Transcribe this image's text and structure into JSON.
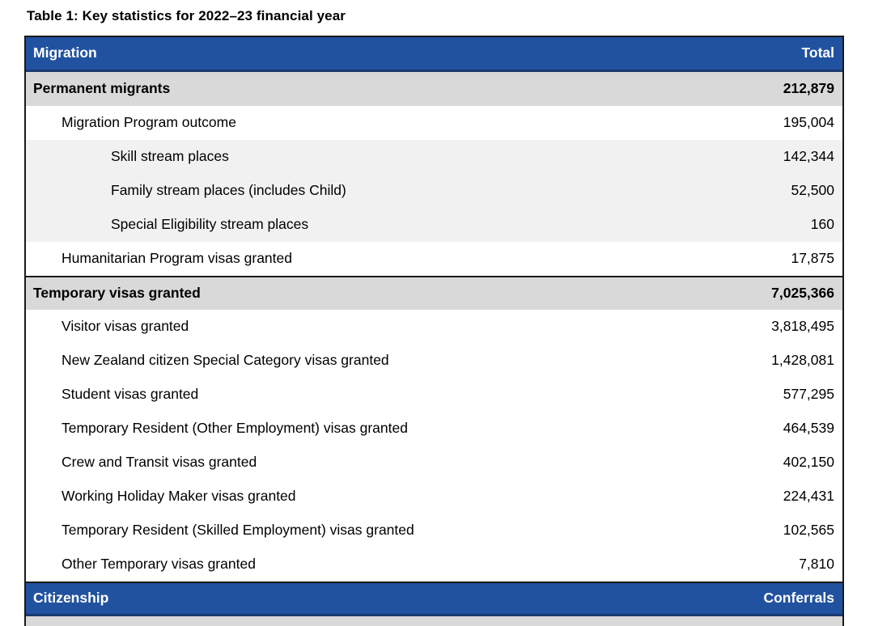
{
  "page": {
    "title": "Table 1: Key statistics for 2022–23 financial year"
  },
  "colors": {
    "header-blue": "#2152A0",
    "header-navy": "#1B3A6F",
    "section-gray": "#D9D9D9",
    "subrow-gray": "#F1F1F1",
    "border-black": "#1a1a1a"
  },
  "table": {
    "rows": [
      {
        "type": "header",
        "divider": false,
        "indent": 0,
        "label": "Migration",
        "value": "Total"
      },
      {
        "type": "section",
        "divider": false,
        "indent": 0,
        "label": "Permanent migrants",
        "value": "212,879"
      },
      {
        "type": "item",
        "divider": false,
        "indent": 1,
        "label": "Migration Program outcome",
        "value": "195,004"
      },
      {
        "type": "subitem",
        "divider": false,
        "indent": 2,
        "label": "Skill stream places",
        "value": "142,344"
      },
      {
        "type": "subitem",
        "divider": false,
        "indent": 2,
        "label": "Family stream places (includes Child)",
        "value": "52,500"
      },
      {
        "type": "subitem",
        "divider": false,
        "indent": 2,
        "label": "Special Eligibility stream places",
        "value": "160"
      },
      {
        "type": "item",
        "divider": false,
        "indent": 1,
        "label": "Humanitarian Program visas granted",
        "value": "17,875"
      },
      {
        "type": "section",
        "divider": true,
        "indent": 0,
        "label": "Temporary visas granted",
        "value": "7,025,366"
      },
      {
        "type": "item",
        "divider": false,
        "indent": 1,
        "label": "Visitor visas granted",
        "value": "3,818,495"
      },
      {
        "type": "item",
        "divider": false,
        "indent": 1,
        "label": "New Zealand citizen Special Category visas granted",
        "value": "1,428,081"
      },
      {
        "type": "item",
        "divider": false,
        "indent": 1,
        "label": "Student visas granted",
        "value": "577,295"
      },
      {
        "type": "item",
        "divider": false,
        "indent": 1,
        "label": "Temporary Resident (Other Employment) visas granted",
        "value": "464,539"
      },
      {
        "type": "item",
        "divider": false,
        "indent": 1,
        "label": "Crew and Transit visas granted",
        "value": "402,150"
      },
      {
        "type": "item",
        "divider": false,
        "indent": 1,
        "label": "Working Holiday Maker visas granted",
        "value": "224,431"
      },
      {
        "type": "item",
        "divider": false,
        "indent": 1,
        "label": "Temporary Resident (Skilled Employment) visas granted",
        "value": "102,565"
      },
      {
        "type": "item",
        "divider": false,
        "indent": 1,
        "label": "Other Temporary visas granted",
        "value": "7,810"
      },
      {
        "type": "header",
        "divider": true,
        "indent": 0,
        "label": "Citizenship",
        "value": "Conferrals"
      },
      {
        "type": "partial",
        "divider": false,
        "indent": 0,
        "label": "",
        "value": ""
      }
    ]
  }
}
